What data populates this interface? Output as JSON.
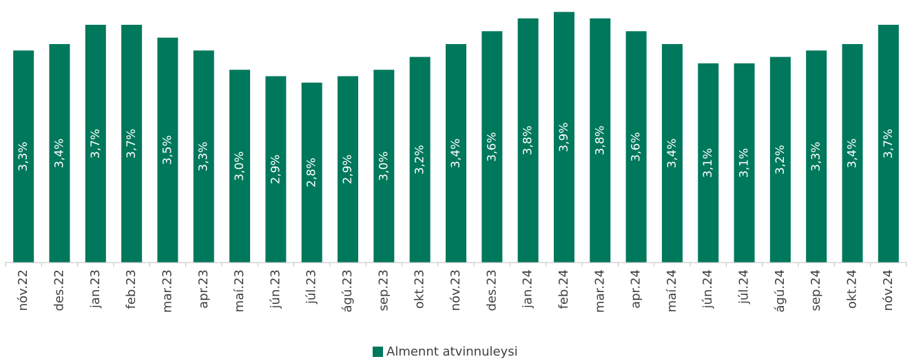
{
  "chart_data": {
    "type": "bar",
    "categories": [
      "nóv.22",
      "des.22",
      "jan.23",
      "feb.23",
      "mar.23",
      "apr.23",
      "maí.23",
      "jún.23",
      "júl.23",
      "ágú.23",
      "sep.23",
      "okt.23",
      "nóv.23",
      "des.23",
      "jan.24",
      "feb.24",
      "mar.24",
      "apr.24",
      "maí.24",
      "jún.24",
      "júl.24",
      "ágú.24",
      "sep.24",
      "okt.24",
      "nóv.24"
    ],
    "series": [
      {
        "name": "Almennt atvinnuleysi",
        "color": "#00785c",
        "values": [
          3.3,
          3.4,
          3.7,
          3.7,
          3.5,
          3.3,
          3.0,
          2.9,
          2.8,
          2.9,
          3.0,
          3.2,
          3.4,
          3.6,
          3.8,
          3.9,
          3.8,
          3.6,
          3.4,
          3.1,
          3.1,
          3.2,
          3.3,
          3.4,
          3.7
        ],
        "value_labels": [
          "3,3%",
          "3,4%",
          "3,7%",
          "3,7%",
          "3,5%",
          "3,3%",
          "3,0%",
          "2,9%",
          "2,8%",
          "2,9%",
          "3,0%",
          "3,2%",
          "3,4%",
          "3,6%",
          "3,8%",
          "3,9%",
          "3,8%",
          "3,6%",
          "3,4%",
          "3,1%",
          "3,1%",
          "3,2%",
          "3,3%",
          "3,4%",
          "3,7%"
        ]
      }
    ],
    "ylim": [
      0,
      4.0
    ]
  }
}
